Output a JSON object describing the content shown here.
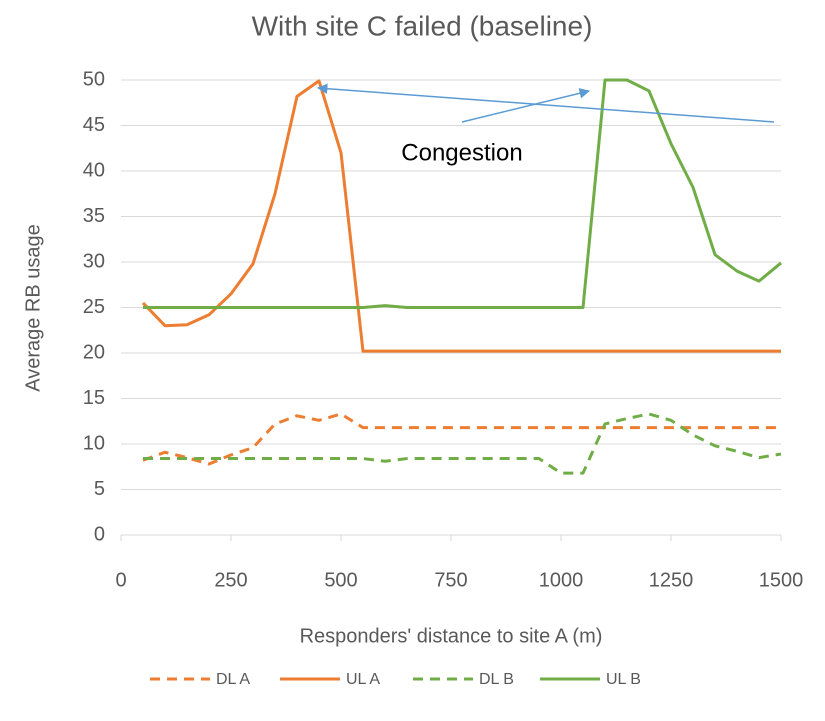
{
  "chart_data": {
    "type": "line",
    "title": "With site C failed (baseline)",
    "x_label": "Responders' distance to site A (m)",
    "y_label": "Average RB usage",
    "x": [
      50,
      100,
      150,
      200,
      250,
      300,
      350,
      400,
      450,
      500,
      550,
      600,
      650,
      700,
      750,
      800,
      850,
      900,
      950,
      1000,
      1050,
      1100,
      1150,
      1200,
      1250,
      1300,
      1350,
      1400,
      1450,
      1500
    ],
    "series": [
      {
        "name": "DL A",
        "color": "#ed7d31",
        "dashed": true,
        "values": [
          8.2,
          9.1,
          8.5,
          7.8,
          8.8,
          9.6,
          12.2,
          13.1,
          12.6,
          13.3,
          11.8,
          11.8,
          11.8,
          11.8,
          11.8,
          11.8,
          11.8,
          11.8,
          11.8,
          11.8,
          11.8,
          11.8,
          11.8,
          11.8,
          11.8,
          11.8,
          11.8,
          11.8,
          11.8,
          11.8
        ]
      },
      {
        "name": "UL A",
        "color": "#ed7d31",
        "dashed": false,
        "values": [
          25.5,
          23,
          23.1,
          24.2,
          26.5,
          29.8,
          37.5,
          48.2,
          49.9,
          42,
          20.2,
          20.2,
          20.2,
          20.2,
          20.2,
          20.2,
          20.2,
          20.2,
          20.2,
          20.2,
          20.2,
          20.2,
          20.2,
          20.2,
          20.2,
          20.2,
          20.2,
          20.2,
          20.2,
          20.2
        ]
      },
      {
        "name": "DL B",
        "color": "#70ad47",
        "dashed": true,
        "values": [
          8.4,
          8.4,
          8.4,
          8.4,
          8.4,
          8.4,
          8.4,
          8.4,
          8.4,
          8.4,
          8.4,
          8.1,
          8.4,
          8.4,
          8.4,
          8.4,
          8.4,
          8.4,
          8.4,
          6.8,
          6.8,
          12.2,
          12.8,
          13.3,
          12.6,
          11,
          9.8,
          9.2,
          8.5,
          8.9
        ]
      },
      {
        "name": "UL B",
        "color": "#70ad47",
        "dashed": false,
        "values": [
          25,
          25,
          25,
          25,
          25,
          25,
          25,
          25,
          25,
          25,
          25,
          25.2,
          25,
          25,
          25,
          25,
          25,
          25,
          25,
          25,
          25,
          50,
          50,
          48.8,
          43,
          38.2,
          30.8,
          29,
          27.9,
          29.9
        ]
      }
    ],
    "xlim": [
      0,
      1500
    ],
    "xticks": [
      0,
      250,
      500,
      750,
      1000,
      1250,
      1500
    ],
    "ylim": [
      0,
      50
    ],
    "yticks": [
      0,
      5,
      10,
      15,
      20,
      25,
      30,
      35,
      40,
      45,
      50
    ],
    "grid": true,
    "legend": "bottom",
    "annotations": [
      "Congestion"
    ]
  }
}
